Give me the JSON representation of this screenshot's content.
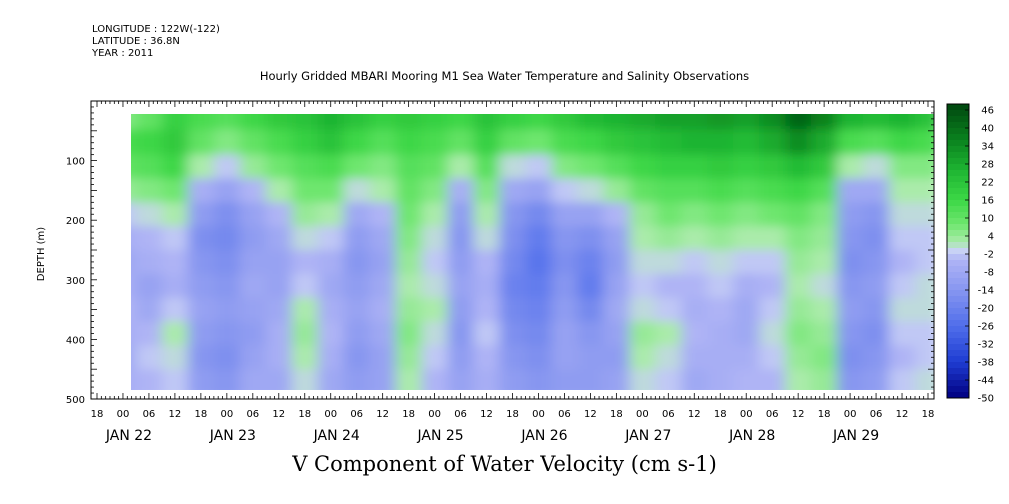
{
  "header": {
    "longitude": "LONGITUDE : 122W(-122)",
    "latitude": "LATITUDE : 36.8N",
    "year": "YEAR : 2011"
  },
  "title": "Hourly Gridded MBARI Mooring M1 Sea Water Temperature and Salinity Observations",
  "footer": "V Component of Water Velocity (cm s-1)",
  "chart_data": {
    "type": "heatmap",
    "title": "Hourly Gridded MBARI Mooring M1 Sea Water Temperature and Salinity Observations",
    "xlabel": "",
    "ylabel": "DEPTH (m)",
    "quantity": "V Component of Water Velocity (cm s-1)",
    "x_range": [
      "JAN 21 18:00",
      "JAN 29 18:00"
    ],
    "data_x_range": [
      "JAN 22 00:00",
      "JAN 29 18:00"
    ],
    "ylim": [
      0,
      500
    ],
    "y_inverted": true,
    "data_y_range": [
      25,
      485
    ],
    "y_ticks": [
      100,
      200,
      300,
      400,
      500
    ],
    "hour_tick_labels": [
      "18",
      "00",
      "06",
      "12",
      "18",
      "00",
      "06",
      "12",
      "18",
      "00",
      "06",
      "12",
      "18",
      "00",
      "06",
      "12",
      "18",
      "00",
      "06",
      "12",
      "18",
      "00",
      "06",
      "12",
      "18",
      "00",
      "06",
      "12",
      "18",
      "00",
      "06",
      "12",
      "18"
    ],
    "date_labels": [
      "JAN 22",
      "JAN 23",
      "JAN 24",
      "JAN 25",
      "JAN 26",
      "JAN 27",
      "JAN 28",
      "JAN 29"
    ],
    "colorbar": {
      "min": -50,
      "max": 48,
      "step": 2,
      "tick_labels": [
        "46",
        "40",
        "34",
        "28",
        "22",
        "16",
        "10",
        "4",
        "-2",
        "-8",
        "-14",
        "-20",
        "-26",
        "-32",
        "-38",
        "-44",
        "-50"
      ]
    },
    "columns": [
      {
        "x": "JAN 22 00:00",
        "values": [
          6,
          14,
          10,
          4,
          -2,
          -6,
          -8,
          -6,
          -4,
          -6,
          -8,
          -6
        ]
      },
      {
        "x": "JAN 22 06:00",
        "values": [
          10,
          16,
          12,
          6,
          0,
          -4,
          -6,
          -10,
          -8,
          -4,
          -2,
          -4
        ]
      },
      {
        "x": "JAN 22 12:00",
        "values": [
          18,
          20,
          16,
          8,
          2,
          -2,
          -4,
          -6,
          -2,
          2,
          0,
          -2
        ]
      },
      {
        "x": "JAN 22 18:00",
        "values": [
          14,
          10,
          2,
          -6,
          -12,
          -16,
          -14,
          -12,
          -10,
          -12,
          -14,
          -12
        ]
      },
      {
        "x": "JAN 23 00:00",
        "values": [
          12,
          6,
          -2,
          -10,
          -16,
          -18,
          -16,
          -14,
          -12,
          -14,
          -16,
          -14
        ]
      },
      {
        "x": "JAN 23 06:00",
        "values": [
          16,
          10,
          4,
          -4,
          -10,
          -12,
          -10,
          -8,
          -10,
          -12,
          -10,
          -8
        ]
      },
      {
        "x": "JAN 23 12:00",
        "values": [
          20,
          14,
          8,
          2,
          -4,
          -8,
          -10,
          -10,
          -8,
          -6,
          -6,
          -8
        ]
      },
      {
        "x": "JAN 23 18:00",
        "values": [
          22,
          18,
          12,
          8,
          4,
          0,
          -4,
          -2,
          2,
          4,
          2,
          0
        ]
      },
      {
        "x": "JAN 24 00:00",
        "values": [
          26,
          22,
          14,
          8,
          2,
          -2,
          -6,
          -8,
          -6,
          -4,
          -6,
          -8
        ]
      },
      {
        "x": "JAN 24 06:00",
        "values": [
          22,
          16,
          8,
          0,
          -8,
          -12,
          -14,
          -12,
          -10,
          -12,
          -14,
          -12
        ]
      },
      {
        "x": "JAN 24 12:00",
        "values": [
          18,
          12,
          6,
          2,
          -4,
          -8,
          -10,
          -8,
          -6,
          -8,
          -10,
          -10
        ]
      },
      {
        "x": "JAN 24 18:00",
        "values": [
          20,
          16,
          12,
          10,
          8,
          6,
          4,
          2,
          4,
          6,
          4,
          2
        ]
      },
      {
        "x": "JAN 25 00:00",
        "values": [
          18,
          14,
          10,
          6,
          2,
          0,
          -2,
          0,
          2,
          0,
          -2,
          -4
        ]
      },
      {
        "x": "JAN 25 06:00",
        "values": [
          16,
          10,
          2,
          -6,
          -12,
          -14,
          -12,
          -10,
          -12,
          -14,
          -12,
          -10
        ]
      },
      {
        "x": "JAN 25 12:00",
        "values": [
          22,
          18,
          12,
          6,
          2,
          0,
          -4,
          -6,
          -4,
          -2,
          -4,
          -6
        ]
      },
      {
        "x": "JAN 25 18:00",
        "values": [
          18,
          10,
          0,
          -8,
          -14,
          -16,
          -18,
          -20,
          -18,
          -16,
          -14,
          -12
        ]
      },
      {
        "x": "JAN 26 00:00",
        "values": [
          16,
          8,
          -2,
          -10,
          -18,
          -22,
          -24,
          -22,
          -20,
          -18,
          -16,
          -14
        ]
      },
      {
        "x": "JAN 26 06:00",
        "values": [
          20,
          14,
          6,
          -2,
          -10,
          -14,
          -16,
          -14,
          -12,
          -10,
          -10,
          -12
        ]
      },
      {
        "x": "JAN 26 12:00",
        "values": [
          24,
          16,
          8,
          0,
          -10,
          -16,
          -20,
          -22,
          -18,
          -14,
          -12,
          -12
        ]
      },
      {
        "x": "JAN 26 18:00",
        "values": [
          26,
          20,
          12,
          4,
          -4,
          -10,
          -12,
          -10,
          -8,
          -10,
          -12,
          -10
        ]
      },
      {
        "x": "JAN 27 00:00",
        "values": [
          28,
          22,
          16,
          10,
          4,
          2,
          0,
          -2,
          0,
          4,
          2,
          0
        ]
      },
      {
        "x": "JAN 27 06:00",
        "values": [
          30,
          24,
          18,
          12,
          8,
          4,
          0,
          -4,
          -2,
          2,
          0,
          -2
        ]
      },
      {
        "x": "JAN 27 12:00",
        "values": [
          30,
          26,
          18,
          12,
          6,
          2,
          -2,
          -4,
          -6,
          -4,
          -6,
          -8
        ]
      },
      {
        "x": "JAN 27 18:00",
        "values": [
          32,
          26,
          20,
          14,
          8,
          4,
          0,
          -2,
          -4,
          -6,
          -6,
          -6
        ]
      },
      {
        "x": "JAN 28 00:00",
        "values": [
          30,
          24,
          18,
          12,
          6,
          2,
          -2,
          -6,
          -8,
          -8,
          -6,
          -4
        ]
      },
      {
        "x": "JAN 28 06:00",
        "values": [
          34,
          28,
          20,
          14,
          8,
          2,
          -2,
          -4,
          -2,
          0,
          -2,
          -4
        ]
      },
      {
        "x": "JAN 28 12:00",
        "values": [
          42,
          34,
          24,
          16,
          10,
          6,
          4,
          2,
          4,
          6,
          4,
          2
        ]
      },
      {
        "x": "JAN 28 18:00",
        "values": [
          36,
          28,
          20,
          12,
          6,
          4,
          2,
          0,
          2,
          4,
          6,
          4
        ]
      },
      {
        "x": "JAN 29 00:00",
        "values": [
          26,
          14,
          2,
          -8,
          -12,
          -14,
          -16,
          -14,
          -12,
          -14,
          -16,
          -14
        ]
      },
      {
        "x": "JAN 29 06:00",
        "values": [
          24,
          12,
          0,
          -8,
          -14,
          -16,
          -14,
          -12,
          -14,
          -16,
          -14,
          -12
        ]
      },
      {
        "x": "JAN 29 12:00",
        "values": [
          26,
          16,
          6,
          2,
          0,
          -2,
          -4,
          -2,
          0,
          -2,
          -4,
          -2
        ]
      },
      {
        "x": "JAN 29 18:00",
        "values": [
          22,
          14,
          6,
          2,
          0,
          -2,
          -2,
          0,
          0,
          -2,
          -2,
          0
        ]
      }
    ],
    "row_depths": [
      25,
      70,
      110,
      150,
      190,
      230,
      270,
      310,
      350,
      390,
      430,
      470
    ],
    "grid": false
  }
}
